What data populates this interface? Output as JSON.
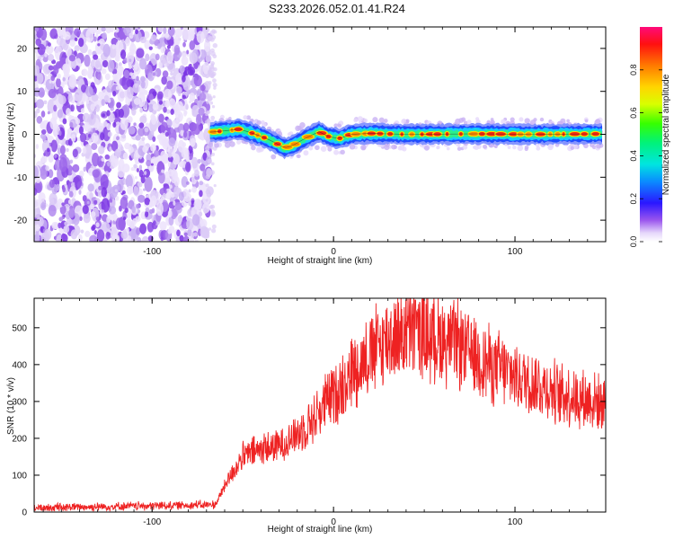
{
  "title": "S233.2026.052.01.41.R24",
  "chart_data": [
    {
      "type": "heatmap",
      "xlabel": "Height of straight line (km)",
      "ylabel": "Frequency (Hz)",
      "xlim": [
        -165,
        150
      ],
      "ylim": [
        -25,
        25
      ],
      "x_ticks": [
        -100,
        0,
        100
      ],
      "x_tick_labels": [
        "-100",
        "0",
        "100"
      ],
      "y_ticks": [
        -20,
        -10,
        0,
        10,
        20
      ],
      "y_tick_labels": [
        "-20",
        "-10",
        "0",
        "10",
        "20"
      ],
      "noise_region_x": [
        -165,
        -68
      ],
      "signal_region_x": [
        -68,
        148
      ],
      "signal_center_track": [
        {
          "x": -68,
          "y": 0.5
        },
        {
          "x": -60,
          "y": 0.8
        },
        {
          "x": -52,
          "y": 1.2
        },
        {
          "x": -45,
          "y": 0.3
        },
        {
          "x": -38,
          "y": -0.8
        },
        {
          "x": -32,
          "y": -2.0
        },
        {
          "x": -27,
          "y": -3.2
        },
        {
          "x": -22,
          "y": -2.5
        },
        {
          "x": -15,
          "y": -0.8
        },
        {
          "x": -8,
          "y": 0.6
        },
        {
          "x": -3,
          "y": -0.5
        },
        {
          "x": 3,
          "y": -1.0
        },
        {
          "x": 10,
          "y": 0.0
        },
        {
          "x": 20,
          "y": 0.2
        },
        {
          "x": 40,
          "y": 0.0
        },
        {
          "x": 80,
          "y": 0.1
        },
        {
          "x": 110,
          "y": 0.0
        },
        {
          "x": 148,
          "y": 0.1
        }
      ],
      "colorbar": {
        "label": "Normalized spectral amplitude",
        "range": [
          0,
          1
        ],
        "ticks": [
          0.0,
          0.2,
          0.4,
          0.6,
          0.8
        ],
        "tick_labels": [
          "0.0",
          "0.2",
          "0.4",
          "0.6",
          "0.8"
        ]
      }
    },
    {
      "type": "line",
      "xlabel": "Height of straight line (km)",
      "ylabel": "SNR (10 * v/v)",
      "xlim": [
        -165,
        150
      ],
      "ylim": [
        0,
        580
      ],
      "x_ticks": [
        -100,
        0,
        100
      ],
      "x_tick_labels": [
        "-100",
        "0",
        "100"
      ],
      "y_ticks": [
        0,
        100,
        200,
        300,
        400,
        500
      ],
      "y_tick_labels": [
        "0",
        "100",
        "200",
        "300",
        "400",
        "500"
      ],
      "series": [
        {
          "name": "SNR",
          "color": "#ee2222",
          "envelope": [
            {
              "x": -165,
              "y": 12
            },
            {
              "x": -120,
              "y": 15
            },
            {
              "x": -90,
              "y": 18
            },
            {
              "x": -65,
              "y": 20
            },
            {
              "x": -58,
              "y": 90
            },
            {
              "x": -50,
              "y": 150
            },
            {
              "x": -40,
              "y": 170
            },
            {
              "x": -30,
              "y": 180
            },
            {
              "x": -20,
              "y": 210
            },
            {
              "x": -10,
              "y": 260
            },
            {
              "x": 0,
              "y": 320
            },
            {
              "x": 10,
              "y": 380
            },
            {
              "x": 20,
              "y": 430
            },
            {
              "x": 30,
              "y": 470
            },
            {
              "x": 40,
              "y": 490
            },
            {
              "x": 50,
              "y": 480
            },
            {
              "x": 60,
              "y": 470
            },
            {
              "x": 70,
              "y": 450
            },
            {
              "x": 80,
              "y": 420
            },
            {
              "x": 90,
              "y": 390
            },
            {
              "x": 100,
              "y": 370
            },
            {
              "x": 110,
              "y": 350
            },
            {
              "x": 120,
              "y": 330
            },
            {
              "x": 130,
              "y": 315
            },
            {
              "x": 140,
              "y": 305
            },
            {
              "x": 150,
              "y": 295
            }
          ],
          "peak": {
            "x": 45,
            "y": 575
          }
        }
      ]
    }
  ]
}
